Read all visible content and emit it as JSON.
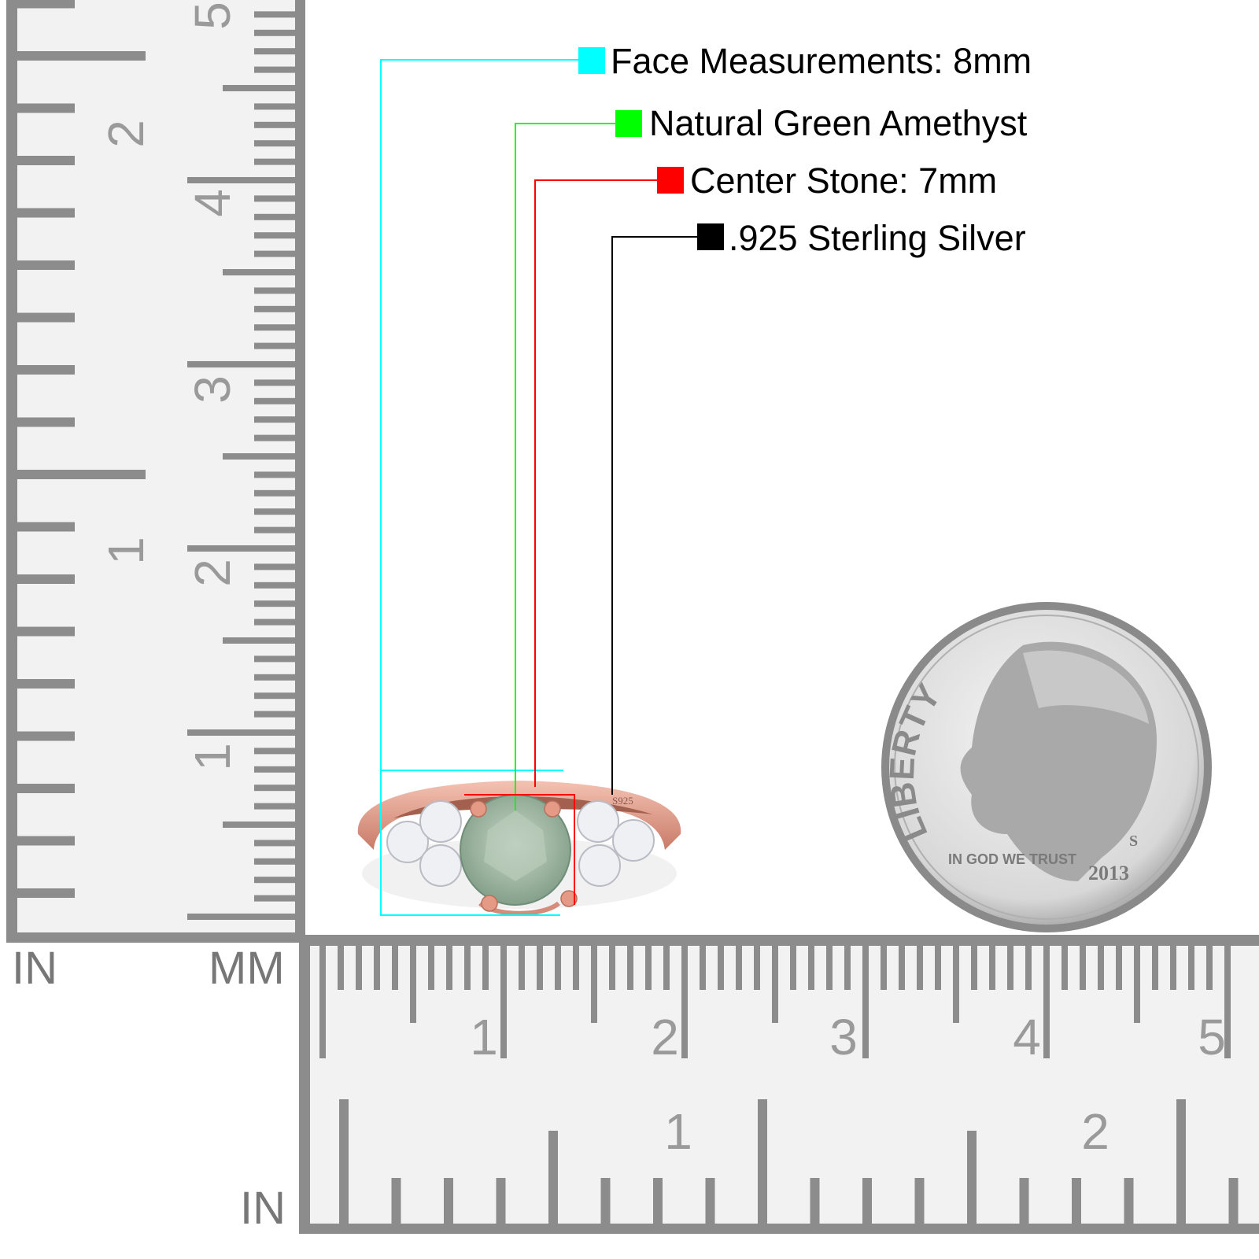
{
  "legend": [
    {
      "label": "Face Measurements: 8mm",
      "color": "#00ffff"
    },
    {
      "label": "Natural Green Amethyst",
      "color": "#00ff00"
    },
    {
      "label": "Center Stone: 7mm",
      "color": "#ff0000"
    },
    {
      "label": ".925 Sterling Silver",
      "color": "#000000"
    }
  ],
  "ruler_vertical": {
    "inch_unit": "IN",
    "mm_unit": "MM",
    "inch_labels": [
      "2",
      "1"
    ],
    "cm_labels": [
      "5",
      "4",
      "3",
      "2",
      "1"
    ]
  },
  "ruler_horizontal": {
    "cm_labels": [
      "1",
      "2",
      "3",
      "4",
      "5"
    ],
    "inch_labels": [
      "1",
      "2"
    ],
    "inch_unit": "IN"
  },
  "ring": {
    "stamp": "S925",
    "metal_color": "#e8a08e",
    "stone_color": "#a9c4ad"
  },
  "coin": {
    "motto_top": "LIBERTY",
    "motto_bottom": "IN GOD WE TRUST",
    "year": "2013",
    "mint_mark": "S"
  }
}
